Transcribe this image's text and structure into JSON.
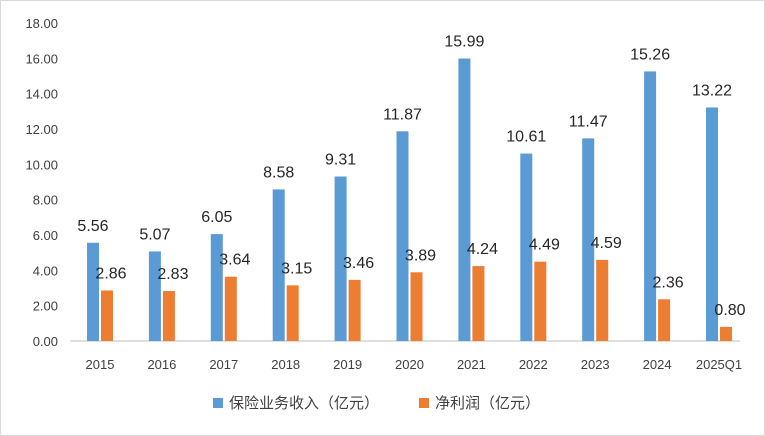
{
  "chart_data": {
    "type": "bar",
    "categories": [
      "2015",
      "2016",
      "2017",
      "2018",
      "2019",
      "2020",
      "2021",
      "2022",
      "2023",
      "2024",
      "2025Q1"
    ],
    "series": [
      {
        "name": "保险业务收入（亿元）",
        "color": "#5b9bd5",
        "values": [
          5.56,
          5.07,
          6.05,
          8.58,
          9.31,
          11.87,
          15.99,
          10.61,
          11.47,
          15.26,
          13.22
        ],
        "labels": [
          "5.56",
          "5.07",
          "6.05",
          "8.58",
          "9.31",
          "11.87",
          "15.99",
          "10.61",
          "11.47",
          "15.26",
          "13.22"
        ]
      },
      {
        "name": "净利润（亿元）",
        "color": "#ed7d31",
        "values": [
          2.86,
          2.83,
          3.64,
          3.15,
          3.46,
          3.89,
          4.24,
          4.49,
          4.59,
          2.36,
          0.8
        ],
        "labels": [
          "2.86",
          "2.83",
          "3.64",
          "3.15",
          "3.46",
          "3.89",
          "4.24",
          "4.49",
          "4.59",
          "2.36",
          "0.80"
        ]
      }
    ],
    "ylim": [
      0,
      18
    ],
    "yticks": [
      "0.00",
      "2.00",
      "4.00",
      "6.00",
      "8.00",
      "10.00",
      "12.00",
      "14.00",
      "16.00",
      "18.00"
    ],
    "grid": false,
    "legend": "bottom",
    "title": "",
    "xlabel": "",
    "ylabel": ""
  }
}
